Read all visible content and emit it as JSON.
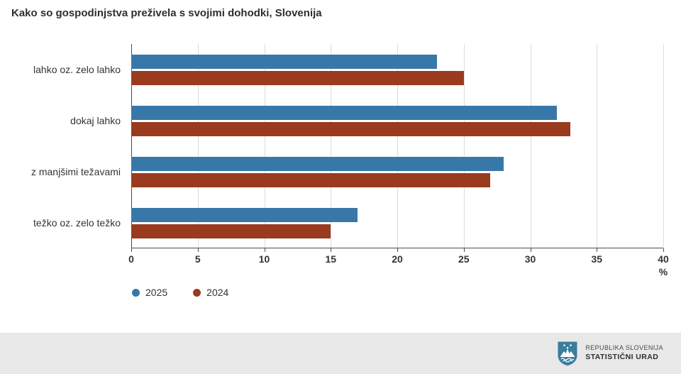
{
  "chart_data": {
    "type": "bar",
    "orientation": "horizontal",
    "title": "Kako so gospodinjstva preživela s svojimi dohodki, Slovenija",
    "categories": [
      "lahko oz. zelo lahko",
      "dokaj lahko",
      "z manjšimi težavami",
      "težko oz. zelo težko"
    ],
    "series": [
      {
        "name": "2025",
        "color": "#3878a8",
        "values": [
          23,
          32,
          28,
          17
        ]
      },
      {
        "name": "2024",
        "color": "#9a3a1e",
        "values": [
          25,
          33,
          27,
          15
        ]
      }
    ],
    "xlim": [
      0,
      40
    ],
    "xticks": [
      0,
      5,
      10,
      15,
      20,
      25,
      30,
      35,
      40
    ],
    "xlabel": "%",
    "grid": "vertical",
    "legend_position": "bottom-left"
  },
  "footer": {
    "org_line1": "REPUBLIKA SLOVENIJA",
    "org_line2": "STATISTIČNI URAD",
    "logo_color": "#3a7d9c"
  }
}
